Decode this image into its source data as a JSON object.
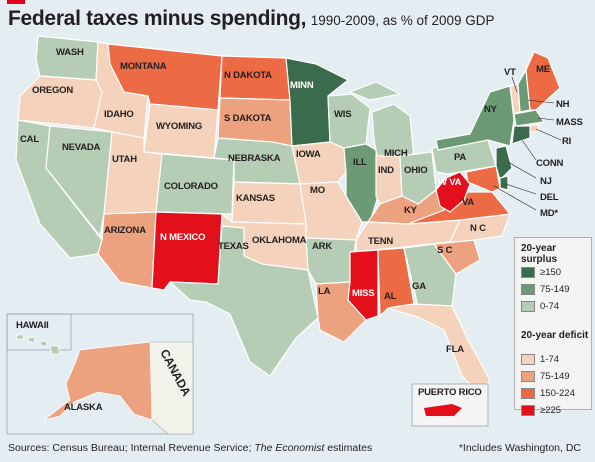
{
  "title": "Federal taxes minus spending,",
  "subtitle": "1990-2009, as % of 2009 GDP",
  "legend": {
    "surplus_heading": "20-year surplus",
    "deficit_heading": "20-year deficit",
    "surplus_items": [
      {
        "label": "≥150",
        "color": "#3a6b4c"
      },
      {
        "label": "75-149",
        "color": "#6b9a74"
      },
      {
        "label": "0-74",
        "color": "#b6cdb5"
      }
    ],
    "deficit_items": [
      {
        "label": "1-74",
        "color": "#f4d2bb"
      },
      {
        "label": "75-149",
        "color": "#eca17f"
      },
      {
        "label": "150-224",
        "color": "#ec6a44"
      },
      {
        "label": "≥225",
        "color": "#e3101c"
      }
    ]
  },
  "states": [
    {
      "label": "WASH",
      "category": "0-74"
    },
    {
      "label": "OREGON",
      "category": "1-74"
    },
    {
      "label": "CAL",
      "category": "0-74"
    },
    {
      "label": "NEVADA",
      "category": "0-74"
    },
    {
      "label": "IDAHO",
      "category": "1-74"
    },
    {
      "label": "MONTANA",
      "category": "150-224"
    },
    {
      "label": "WYOMING",
      "category": "1-74"
    },
    {
      "label": "UTAH",
      "category": "1-74"
    },
    {
      "label": "ARIZONA",
      "category": "75-149"
    },
    {
      "label": "COLORADO",
      "category": "0-74"
    },
    {
      "label": "N MEXICO",
      "category": "≥225"
    },
    {
      "label": "N DAKOTA",
      "category": "150-224"
    },
    {
      "label": "S DAKOTA",
      "category": "75-149"
    },
    {
      "label": "NEBRASKA",
      "category": "0-74"
    },
    {
      "label": "KANSAS",
      "category": "1-74"
    },
    {
      "label": "OKLAHOMA",
      "category": "1-74"
    },
    {
      "label": "TEXAS",
      "category": "0-74"
    },
    {
      "label": "MINN",
      "category": "≥150"
    },
    {
      "label": "IOWA",
      "category": "1-74"
    },
    {
      "label": "MO",
      "category": "1-74"
    },
    {
      "label": "ARK",
      "category": "0-74"
    },
    {
      "label": "LA",
      "category": "75-149"
    },
    {
      "label": "WIS",
      "category": "0-74"
    },
    {
      "label": "ILL",
      "category": "75-149"
    },
    {
      "label": "MICH",
      "category": "0-74"
    },
    {
      "label": "IND",
      "category": "1-74"
    },
    {
      "label": "OHIO",
      "category": "0-74"
    },
    {
      "label": "KY",
      "category": "75-149"
    },
    {
      "label": "TENN",
      "category": "1-74"
    },
    {
      "label": "MISS",
      "category": "≥225"
    },
    {
      "label": "AL",
      "category": "150-224"
    },
    {
      "label": "GA",
      "category": "0-74"
    },
    {
      "label": "FLA",
      "category": "1-74"
    },
    {
      "label": "S C",
      "category": "75-149"
    },
    {
      "label": "N C",
      "category": "1-74"
    },
    {
      "label": "VA",
      "category": "150-224"
    },
    {
      "label": "W VA",
      "category": "≥225"
    },
    {
      "label": "PA",
      "category": "0-74"
    },
    {
      "label": "NY",
      "category": "75-149"
    },
    {
      "label": "VT",
      "category": "1-74"
    },
    {
      "label": "NH",
      "category": "75-149"
    },
    {
      "label": "ME",
      "category": "150-224"
    },
    {
      "label": "MASS",
      "category": "75-149"
    },
    {
      "label": "RI",
      "category": "1-74"
    },
    {
      "label": "CONN",
      "category": "≥150"
    },
    {
      "label": "NJ",
      "category": "≥150"
    },
    {
      "label": "DEL",
      "category": "≥150"
    },
    {
      "label": "MD*",
      "category": "150-224"
    },
    {
      "label": "HAWAII",
      "category": "0-74"
    },
    {
      "label": "ALASKA",
      "category": "75-149"
    },
    {
      "label": "PUERTO RICO",
      "category": "≥225"
    }
  ],
  "country_label": "CANADA",
  "sources_prefix": "Sources: Census Bureau; Internal Revenue Service;",
  "sources_em": "The Economist",
  "sources_suffix": "estimates",
  "footnote": "*Includes Washington, DC",
  "colors": {
    "sea": "#e4eef2",
    "border": "#ffffff",
    "accent_red": "#e2001a",
    "canada_land": "#f2f1ea"
  }
}
